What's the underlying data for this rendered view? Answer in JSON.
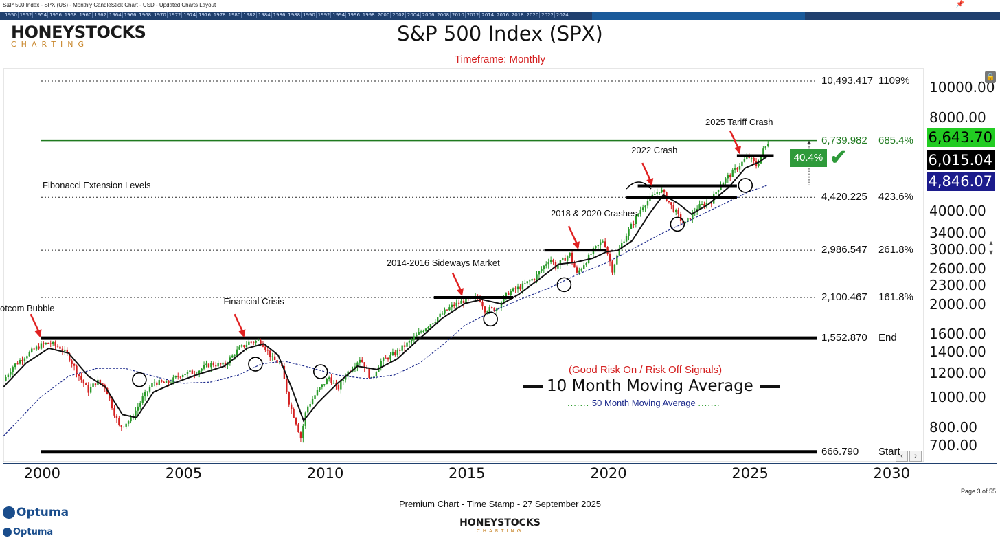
{
  "window": {
    "title": "S&P 500 Index - SPX (US) - Monthly CandleStick Chart - USD - Updated Charts Layout",
    "year_strip": [
      "1950",
      "1952",
      "1954",
      "1956",
      "1958",
      "1960",
      "1962",
      "1964",
      "1966",
      "1968",
      "1970",
      "1972",
      "1974",
      "1976",
      "1978",
      "1980",
      "1982",
      "1984",
      "1986",
      "1988",
      "1990",
      "1992",
      "1994",
      "1996",
      "1998",
      "2000",
      "2002",
      "2004",
      "2006",
      "2008",
      "2010",
      "2012",
      "2014",
      "2016",
      "2018",
      "2020",
      "2022",
      "2024"
    ]
  },
  "brand": {
    "logo_main": "HONEYSTOCKS",
    "logo_sub": "CHARTING"
  },
  "chart_data": {
    "type": "line",
    "title": "S&P 500 Index (SPX)",
    "subtitle": "Timeframe: Monthly",
    "x_axis": {
      "ticks": [
        "2000",
        "2005",
        "2010",
        "2015",
        "2020",
        "2025",
        "2030"
      ],
      "range": [
        1998.7,
        2031.2
      ]
    },
    "y_axis": {
      "scale": "log",
      "range": [
        620,
        11500
      ],
      "ticks": [
        "10000.00",
        "8000.00",
        "4000.00",
        "3400.00",
        "3000.00",
        "2600.00",
        "2300.00",
        "2000.00",
        "1600.00",
        "1400.00",
        "1200.00",
        "1000.00",
        "800.00",
        "700.00"
      ]
    },
    "price_badges": [
      {
        "value": "6,643.70",
        "bg": "#22cc22",
        "fg": "#000000"
      },
      {
        "value": "6,015.04",
        "bg": "#000000",
        "fg": "#ffffff"
      },
      {
        "value": "4,846.07",
        "bg": "#1c1c8c",
        "fg": "#ffffff"
      }
    ],
    "fib_levels": [
      {
        "value": 10493.417,
        "label": "10,493.417",
        "pct": "1109%",
        "style": "dotted"
      },
      {
        "value": 6739.982,
        "label": "6,739.982",
        "pct": "685.4%",
        "style": "green"
      },
      {
        "value": 4420.225,
        "label": "4,420.225",
        "pct": "423.6%",
        "style": "dotted"
      },
      {
        "value": 2986.547,
        "label": "2,986.547",
        "pct": "261.8%",
        "style": "dotted"
      },
      {
        "value": 2100.467,
        "label": "2,100.467",
        "pct": "161.8%",
        "style": "dotted"
      },
      {
        "value": 1552.87,
        "label": "1,552.870",
        "pct": "End",
        "style": "solid"
      },
      {
        "value": 666.79,
        "label": "666.790",
        "pct": "Start",
        "style": "solid"
      }
    ],
    "price_series": [
      [
        1998.7,
        1130
      ],
      [
        1999.0,
        1250
      ],
      [
        1999.5,
        1370
      ],
      [
        2000.0,
        1470
      ],
      [
        2000.3,
        1500
      ],
      [
        2000.7,
        1450
      ],
      [
        2001.0,
        1360
      ],
      [
        2001.3,
        1200
      ],
      [
        2001.7,
        1050
      ],
      [
        2002.0,
        1130
      ],
      [
        2002.3,
        1080
      ],
      [
        2002.6,
        900
      ],
      [
        2002.8,
        800
      ],
      [
        2003.2,
        850
      ],
      [
        2003.6,
        990
      ],
      [
        2004.0,
        1120
      ],
      [
        2004.5,
        1110
      ],
      [
        2005.0,
        1190
      ],
      [
        2005.5,
        1210
      ],
      [
        2006.0,
        1280
      ],
      [
        2006.5,
        1270
      ],
      [
        2007.0,
        1430
      ],
      [
        2007.4,
        1510
      ],
      [
        2007.8,
        1520
      ],
      [
        2008.2,
        1330
      ],
      [
        2008.5,
        1280
      ],
      [
        2008.8,
        950
      ],
      [
        2009.0,
        850
      ],
      [
        2009.2,
        740
      ],
      [
        2009.4,
        920
      ],
      [
        2009.8,
        1050
      ],
      [
        2010.2,
        1160
      ],
      [
        2010.5,
        1060
      ],
      [
        2010.8,
        1190
      ],
      [
        2011.3,
        1340
      ],
      [
        2011.7,
        1140
      ],
      [
        2012.0,
        1300
      ],
      [
        2012.5,
        1380
      ],
      [
        2013.0,
        1500
      ],
      [
        2013.5,
        1650
      ],
      [
        2014.0,
        1800
      ],
      [
        2014.5,
        1960
      ],
      [
        2015.0,
        2060
      ],
      [
        2015.5,
        2100
      ],
      [
        2015.7,
        1920
      ],
      [
        2016.1,
        1930
      ],
      [
        2016.5,
        2170
      ],
      [
        2017.0,
        2280
      ],
      [
        2017.5,
        2450
      ],
      [
        2018.0,
        2820
      ],
      [
        2018.2,
        2640
      ],
      [
        2018.7,
        2900
      ],
      [
        2018.95,
        2500
      ],
      [
        2019.5,
        2950
      ],
      [
        2019.9,
        3230
      ],
      [
        2020.2,
        2580
      ],
      [
        2020.5,
        3100
      ],
      [
        2020.9,
        3620
      ],
      [
        2021.3,
        4180
      ],
      [
        2021.9,
        4700
      ],
      [
        2022.3,
        4130
      ],
      [
        2022.75,
        3600
      ],
      [
        2023.2,
        4100
      ],
      [
        2023.7,
        4300
      ],
      [
        2024.0,
        4850
      ],
      [
        2024.6,
        5500
      ],
      [
        2025.0,
        6000
      ],
      [
        2025.3,
        5580
      ],
      [
        2025.5,
        6200
      ],
      [
        2025.7,
        6643
      ]
    ],
    "ma10_series": [
      [
        1998.7,
        1080
      ],
      [
        1999.5,
        1290
      ],
      [
        2000.3,
        1440
      ],
      [
        2001.0,
        1390
      ],
      [
        2001.7,
        1170
      ],
      [
        2002.3,
        1080
      ],
      [
        2002.9,
        880
      ],
      [
        2003.4,
        860
      ],
      [
        2004.0,
        1040
      ],
      [
        2004.7,
        1110
      ],
      [
        2005.5,
        1180
      ],
      [
        2006.5,
        1260
      ],
      [
        2007.3,
        1440
      ],
      [
        2007.9,
        1490
      ],
      [
        2008.4,
        1370
      ],
      [
        2008.9,
        1060
      ],
      [
        2009.3,
        840
      ],
      [
        2009.8,
        960
      ],
      [
        2010.5,
        1110
      ],
      [
        2011.2,
        1260
      ],
      [
        2011.9,
        1230
      ],
      [
        2012.6,
        1330
      ],
      [
        2013.4,
        1550
      ],
      [
        2014.2,
        1800
      ],
      [
        2015.0,
        2010
      ],
      [
        2015.6,
        2070
      ],
      [
        2016.3,
        2000
      ],
      [
        2016.9,
        2150
      ],
      [
        2017.6,
        2400
      ],
      [
        2018.3,
        2690
      ],
      [
        2018.9,
        2730
      ],
      [
        2019.5,
        2810
      ],
      [
        2020.0,
        2950
      ],
      [
        2020.4,
        2980
      ],
      [
        2020.9,
        3200
      ],
      [
        2021.5,
        3900
      ],
      [
        2022.0,
        4500
      ],
      [
        2022.5,
        4240
      ],
      [
        2023.0,
        3900
      ],
      [
        2023.6,
        4200
      ],
      [
        2024.3,
        4750
      ],
      [
        2024.9,
        5500
      ],
      [
        2025.4,
        5760
      ],
      [
        2025.7,
        6015
      ]
    ],
    "ma50_series": [
      [
        1998.7,
        750
      ],
      [
        2000.0,
        1000
      ],
      [
        2001.0,
        1170
      ],
      [
        2002.0,
        1240
      ],
      [
        2003.0,
        1240
      ],
      [
        2004.0,
        1170
      ],
      [
        2005.0,
        1110
      ],
      [
        2006.0,
        1120
      ],
      [
        2007.0,
        1180
      ],
      [
        2007.8,
        1280
      ],
      [
        2008.6,
        1310
      ],
      [
        2009.5,
        1250
      ],
      [
        2010.5,
        1180
      ],
      [
        2011.5,
        1150
      ],
      [
        2012.5,
        1180
      ],
      [
        2013.4,
        1290
      ],
      [
        2014.3,
        1500
      ],
      [
        2015.0,
        1710
      ],
      [
        2016.0,
        1900
      ],
      [
        2017.0,
        2080
      ],
      [
        2018.0,
        2260
      ],
      [
        2019.0,
        2500
      ],
      [
        2020.0,
        2720
      ],
      [
        2021.0,
        3040
      ],
      [
        2022.0,
        3400
      ],
      [
        2023.0,
        3750
      ],
      [
        2024.0,
        4150
      ],
      [
        2025.0,
        4600
      ],
      [
        2025.7,
        4846
      ]
    ],
    "support_bars": [
      {
        "x0": 2013.9,
        "x1": 2016.7,
        "value": 2100
      },
      {
        "x0": 2017.8,
        "x1": 2020.0,
        "value": 2986
      },
      {
        "x0": 2021.1,
        "x1": 2024.6,
        "value": 4815
      },
      {
        "x0": 2020.7,
        "x1": 2024.6,
        "value": 4420
      },
      {
        "x0": 2024.6,
        "x1": 2025.9,
        "value": 6030
      }
    ],
    "circles": [
      [
        2003.5,
        1140
      ],
      [
        2007.6,
        1280
      ],
      [
        2009.9,
        1210
      ],
      [
        2015.9,
        1790
      ],
      [
        2018.5,
        2310
      ],
      [
        2022.5,
        3620
      ],
      [
        2024.9,
        4830
      ]
    ],
    "annotations": [
      {
        "text": "Dotcom Bubble",
        "arrow_to": [
          2000.0,
          1560
        ]
      },
      {
        "text": "Financial Crisis",
        "arrow_to": [
          2007.2,
          1560
        ]
      },
      {
        "text": "2014-2016 Sideways Market",
        "arrow_to": [
          2014.9,
          2120
        ]
      },
      {
        "text": "2018 & 2020 Crashes",
        "arrow_to": [
          2019.0,
          3000
        ]
      },
      {
        "text": "2022 Crash",
        "arrow_to": [
          2021.6,
          4800
        ]
      },
      {
        "text": "2025 Tariff Crash",
        "arrow_to": [
          2024.7,
          6100
        ]
      }
    ],
    "fib_caption": "Fibonacci Extension Levels",
    "gain_box": "40.4%",
    "legend": {
      "signals": "(Good Risk On / Risk Off Signals)",
      "ma10": "10 Month Moving Average",
      "ma50": "50 Month Moving Average"
    },
    "colors": {
      "up": "#2a9a2a",
      "down": "#d42020",
      "ma10": "#111111",
      "ma50": "#1c2a8c",
      "green_level": "#1f7a1f"
    }
  },
  "footer": {
    "page": "Page 3 of 55",
    "stamp": "Premium Chart - Time Stamp - 27 September 2025",
    "optuma": "Optuma",
    "logo_main": "HONEYSTOCKS",
    "logo_sub": "CHARTING"
  }
}
